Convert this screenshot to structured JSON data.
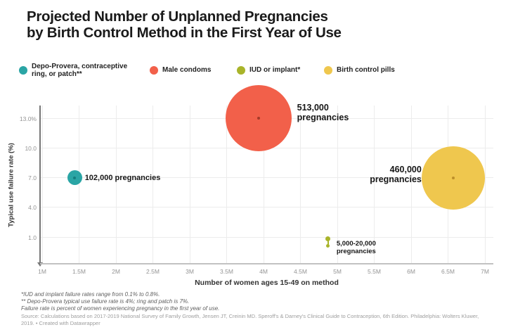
{
  "header": {
    "title_line1": "Projected Number of Unplanned Pregnancies",
    "title_line2": "by Birth Control Method in the First Year of Use"
  },
  "legend": {
    "items": [
      {
        "label": "Depo-Provera, contraceptive\nring, or patch**",
        "color": "#2AA5A5"
      },
      {
        "label": "Male condoms",
        "color": "#F2604A"
      },
      {
        "label": "IUD or implant*",
        "color": "#A9B42A"
      },
      {
        "label": "Birth control pills",
        "color": "#EFC74E"
      }
    ]
  },
  "chart_data": {
    "type": "scatter",
    "title": "Projected Number of Unplanned Pregnancies by Birth Control Method in the First Year of Use",
    "grid": true,
    "x_axis": {
      "label": "Number of women ages 15-49 on method",
      "min": 1,
      "max": 7,
      "unit": "millions",
      "ticks": [
        {
          "v": 1,
          "label": "1M"
        },
        {
          "v": 1.5,
          "label": "1.5M"
        },
        {
          "v": 2,
          "label": "2M"
        },
        {
          "v": 2.5,
          "label": "2.5M"
        },
        {
          "v": 3,
          "label": "3M"
        },
        {
          "v": 3.5,
          "label": "3.5M"
        },
        {
          "v": 4,
          "label": "4M"
        },
        {
          "v": 4.5,
          "label": "4.5M"
        },
        {
          "v": 5,
          "label": "5M"
        },
        {
          "v": 5.5,
          "label": "5.5M"
        },
        {
          "v": 6,
          "label": "6M"
        },
        {
          "v": 6.5,
          "label": "6.5M"
        },
        {
          "v": 7,
          "label": "7M"
        }
      ]
    },
    "y_axis": {
      "label": "Typical use failure rate (%)",
      "min": 0,
      "max": 14,
      "ticks": [
        {
          "v": 13,
          "label": "13.0%"
        },
        {
          "v": 10,
          "label": "10.0"
        },
        {
          "v": 7,
          "label": "7.0"
        },
        {
          "v": 4,
          "label": "4.0"
        },
        {
          "v": 1,
          "label": "1.0"
        }
      ]
    },
    "series": [
      {
        "method": "Depo-Provera, contraceptive ring, or patch**",
        "color": "#2AA5A5",
        "center_dot_color": "#157e7e",
        "women_on_method_millions": 1.44,
        "typical_use_failure_rate_pct": 7.0,
        "pregnancies": "102,000",
        "bubble_radius_px": 10.5,
        "label": {
          "lines": [
            "102,000 pregnancies"
          ],
          "side": "right",
          "dy": -6,
          "gap": 4,
          "font_px": 11,
          "line_h": 12
        }
      },
      {
        "method": "Male condoms",
        "color": "#F2604A",
        "center_dot_color": "#a53a28",
        "women_on_method_millions": 3.93,
        "typical_use_failure_rate_pct": 13.0,
        "pregnancies": "513,000",
        "bubble_radius_px": 47,
        "label": {
          "lines": [
            "513,000",
            "pregnancies"
          ],
          "side": "right",
          "dy": -22,
          "gap": 8,
          "font_px": 12.5,
          "line_h": 14
        }
      },
      {
        "method": "IUD or implant*",
        "color": "#A9B42A",
        "center_dot_color": "#7a8417",
        "women_on_method_millions": 4.875,
        "marker": "range",
        "failure_rate_range_pct": [
          0.1,
          0.8
        ],
        "pregnancies": "5,000-20,000",
        "label": {
          "lines": [
            "5,000-20,000",
            "pregnancies"
          ],
          "side": "right",
          "dy": 1,
          "gap": 12,
          "font_px": 9.5,
          "line_h": 11
        }
      },
      {
        "method": "Birth control pills",
        "color": "#EFC74E",
        "center_dot_color": "#bd8f2a",
        "women_on_method_millions": 6.57,
        "typical_use_failure_rate_pct": 7.0,
        "pregnancies": "460,000",
        "bubble_radius_px": 45,
        "label": {
          "lines": [
            "460,000",
            "pregnancies"
          ],
          "side": "left",
          "dy": -19,
          "gap": 0,
          "font_px": 12.5,
          "line_h": 14
        }
      }
    ]
  },
  "footer": {
    "notes": [
      "*IUD and implant failure rates range from 0.1% to 0.8%.",
      "** Depo-Provera typical use failure rate is 4%; ring and patch is 7%.",
      "Failure rate is percent of women experiencing pregnancy in the first year of use."
    ],
    "source": "Source: Calculations based on 2017-2019 National Survey of Family Growth, Jensen JT, Creinin MD. Speroff's & Darney's Clinical Guide to Contraception, 6th Edition. Philadelphia: Wolters Kluwer, 2019. • Created with Datawrapper"
  }
}
